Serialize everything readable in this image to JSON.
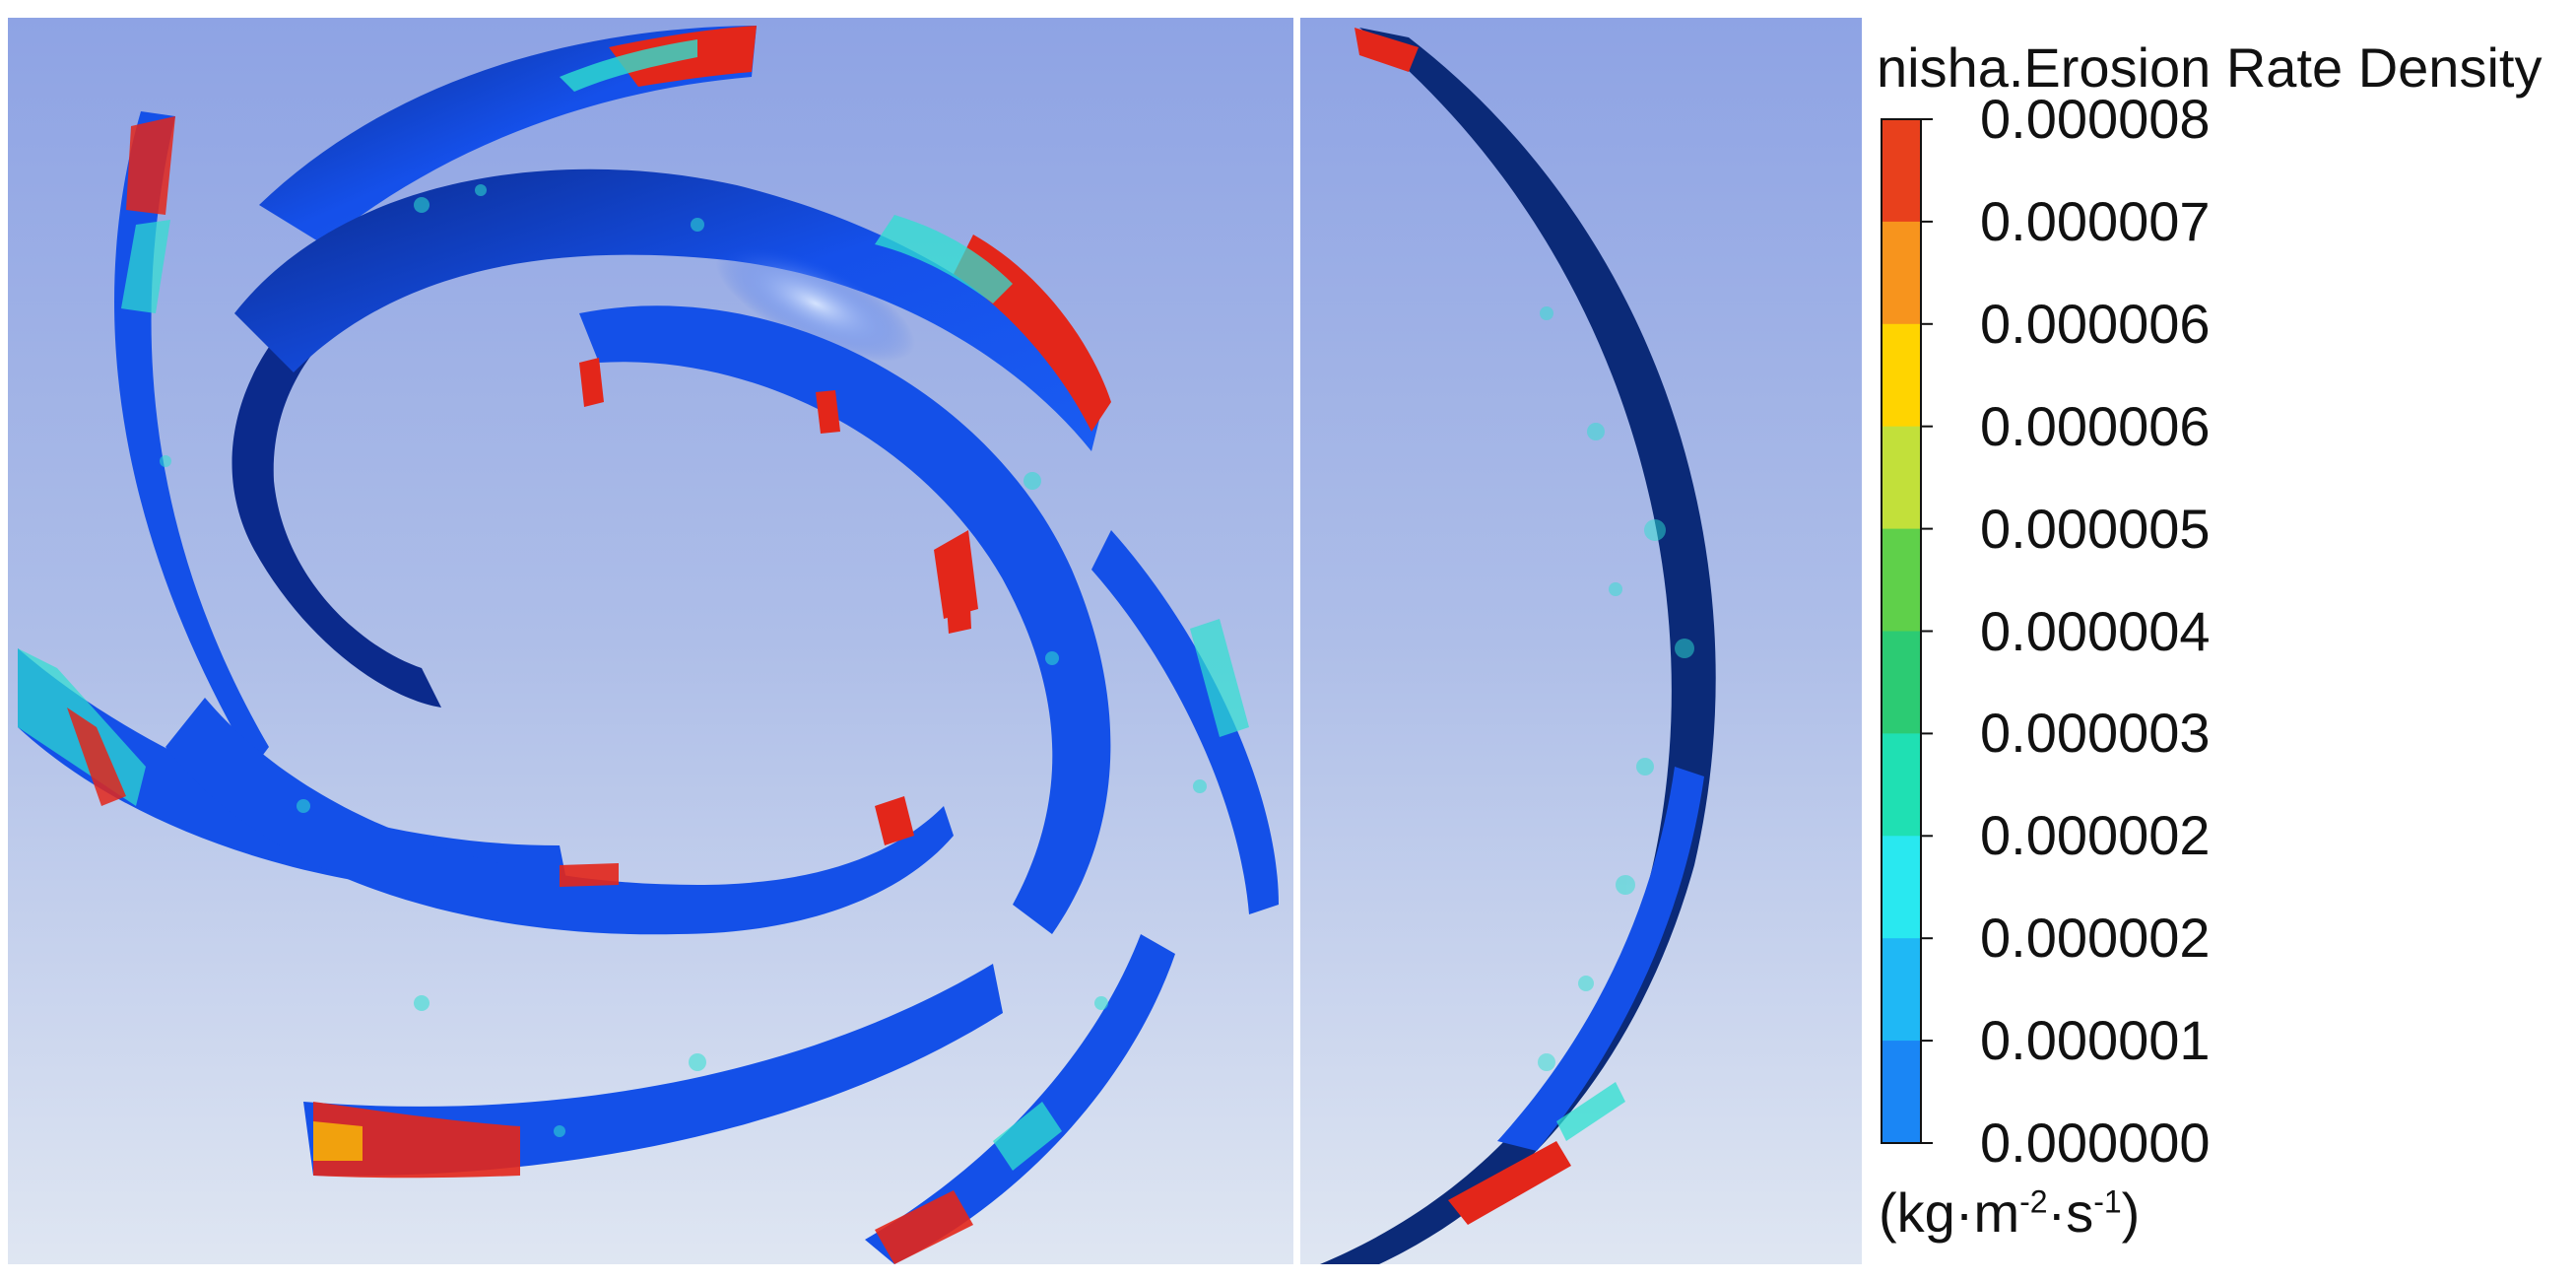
{
  "legend": {
    "title": "nisha.Erosion Rate Density",
    "tick_labels": [
      "0.000008",
      "0.000007",
      "0.000006",
      "0.000006",
      "0.000005",
      "0.000004",
      "0.000003",
      "0.000002",
      "0.000002",
      "0.000001",
      "0.000000"
    ],
    "units": {
      "base": "(kg·m",
      "exp1": "-2",
      "mid": "·s",
      "exp2": "-1",
      "end": ")"
    },
    "colorbar_colors": [
      "#e8401c",
      "#f7941d",
      "#ffd400",
      "#c2e03a",
      "#5fd04a",
      "#2ccb73",
      "#1fe0b3",
      "#29e8f0",
      "#1fb8f5",
      "#1a86f5",
      "#1446e6"
    ]
  },
  "colors": {
    "blade_base": "#1450e8",
    "blade_dark": "#0a2f9a",
    "blade_navy": "#0b2a78",
    "high_erosion": "#e3261a",
    "mid_erosion": "#2de0d0"
  }
}
